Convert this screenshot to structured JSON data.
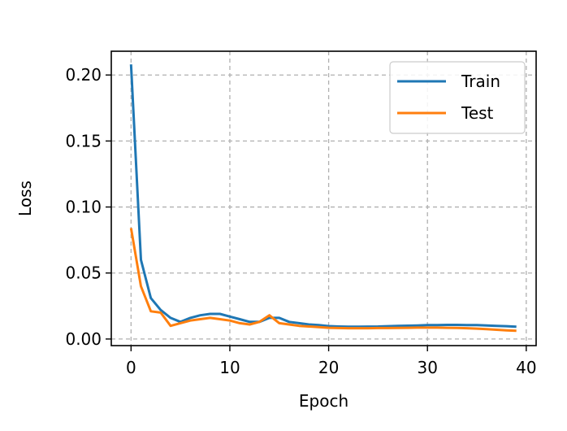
{
  "chart_data": {
    "type": "line",
    "title": "",
    "xlabel": "Epoch",
    "ylabel": "Loss",
    "xlim": [
      -2,
      41
    ],
    "ylim": [
      -0.005,
      0.218
    ],
    "xticks": [
      0,
      10,
      20,
      30,
      40
    ],
    "xtick_labels": [
      "0",
      "10",
      "20",
      "30",
      "40"
    ],
    "yticks": [
      0.0,
      0.05,
      0.1,
      0.15,
      0.2
    ],
    "ytick_labels": [
      "0.00",
      "0.05",
      "0.10",
      "0.15",
      "0.20"
    ],
    "grid": true,
    "legend_position": "top-right",
    "x": [
      0,
      1,
      2,
      3,
      4,
      5,
      6,
      7,
      8,
      9,
      10,
      11,
      12,
      13,
      14,
      15,
      16,
      17,
      18,
      19,
      20,
      21,
      22,
      23,
      24,
      25,
      26,
      27,
      28,
      29,
      30,
      31,
      32,
      33,
      34,
      35,
      36,
      37,
      38,
      39
    ],
    "series": [
      {
        "name": "Train",
        "color": "#1f77b4",
        "values": [
          0.208,
          0.06,
          0.031,
          0.022,
          0.016,
          0.013,
          0.016,
          0.018,
          0.019,
          0.019,
          0.017,
          0.015,
          0.013,
          0.013,
          0.016,
          0.016,
          0.013,
          0.012,
          0.011,
          0.0105,
          0.0098,
          0.0095,
          0.0093,
          0.0093,
          0.0094,
          0.0095,
          0.0097,
          0.0099,
          0.0101,
          0.0103,
          0.0105,
          0.0106,
          0.0107,
          0.0107,
          0.0106,
          0.0105,
          0.0103,
          0.01,
          0.0097,
          0.0093
        ]
      },
      {
        "name": "Test",
        "color": "#ff7f0e",
        "values": [
          0.084,
          0.04,
          0.021,
          0.02,
          0.01,
          0.012,
          0.014,
          0.015,
          0.016,
          0.015,
          0.014,
          0.012,
          0.011,
          0.013,
          0.018,
          0.012,
          0.011,
          0.01,
          0.0095,
          0.009,
          0.0085,
          0.0083,
          0.0082,
          0.0082,
          0.0082,
          0.0083,
          0.0083,
          0.0084,
          0.0085,
          0.0086,
          0.0086,
          0.0086,
          0.0085,
          0.0084,
          0.0082,
          0.0079,
          0.0075,
          0.007,
          0.0066,
          0.0062
        ]
      }
    ]
  }
}
